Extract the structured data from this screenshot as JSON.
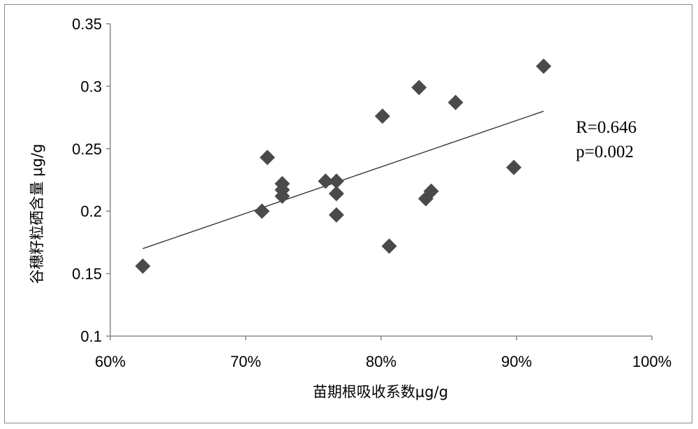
{
  "chart_data": {
    "type": "scatter",
    "title": "",
    "xlabel": "苗期根吸收系数μg/g",
    "ylabel": "谷穗籽粒硒含量 μg/g",
    "xlim": [
      60,
      100
    ],
    "ylim": [
      0.1,
      0.35
    ],
    "x_ticks": [
      60,
      70,
      80,
      90,
      100
    ],
    "x_tick_labels": [
      "60%",
      "70%",
      "80%",
      "90%",
      "100%"
    ],
    "y_ticks": [
      0.1,
      0.15,
      0.2,
      0.25,
      0.3,
      0.35
    ],
    "y_tick_labels": [
      "0.1",
      "0.15",
      "0.2",
      "0.25",
      "0.3",
      "0.35"
    ],
    "grid": false,
    "legend": "none",
    "marker": "diamond",
    "marker_color": "#4a4a4a",
    "line_color": "#333333",
    "points": [
      {
        "x": 62.4,
        "y": 0.156
      },
      {
        "x": 71.2,
        "y": 0.2
      },
      {
        "x": 71.6,
        "y": 0.243
      },
      {
        "x": 72.7,
        "y": 0.222
      },
      {
        "x": 72.7,
        "y": 0.217
      },
      {
        "x": 72.7,
        "y": 0.212
      },
      {
        "x": 75.9,
        "y": 0.224
      },
      {
        "x": 76.7,
        "y": 0.224
      },
      {
        "x": 76.7,
        "y": 0.214
      },
      {
        "x": 76.7,
        "y": 0.197
      },
      {
        "x": 80.1,
        "y": 0.276
      },
      {
        "x": 80.6,
        "y": 0.172
      },
      {
        "x": 82.8,
        "y": 0.299
      },
      {
        "x": 83.3,
        "y": 0.21
      },
      {
        "x": 83.7,
        "y": 0.216
      },
      {
        "x": 85.5,
        "y": 0.287
      },
      {
        "x": 89.8,
        "y": 0.235
      },
      {
        "x": 92.0,
        "y": 0.316
      }
    ],
    "trendline": {
      "x": [
        62.4,
        92.0
      ],
      "y": [
        0.17,
        0.28
      ]
    },
    "annotations": [
      "R=0.646",
      "p=0.002"
    ]
  }
}
